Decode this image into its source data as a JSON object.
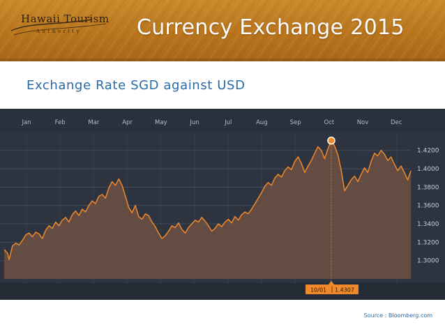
{
  "banner": {
    "logo_text": "Hawaii Tourism",
    "logo_subtext": "Authority",
    "title": "Currency Exchange 2015"
  },
  "subtitle": "Exchange Rate SGD against USD",
  "source": "Source : Bloomberg.com",
  "colors": {
    "banner": "#b9751d",
    "chart_bg": "#2d3440",
    "line": "#f0892b",
    "area": "#6b4f43",
    "subtitle": "#2a6aa8"
  },
  "chart_data": {
    "type": "area",
    "title": "",
    "xlabel": "",
    "ylabel": "",
    "months": [
      "Jan",
      "Feb",
      "Mar",
      "Apr",
      "May",
      "Jun",
      "Jul",
      "Aug",
      "Sep",
      "Oct",
      "Nov",
      "Dec"
    ],
    "yticks": [
      "1.4200",
      "1.4000",
      "1.3800",
      "1.3600",
      "1.3400",
      "1.3200",
      "1.3000"
    ],
    "ylim": [
      1.28,
      1.435
    ],
    "grid": true,
    "highlight": {
      "date": "10/01",
      "value": "1.4307"
    },
    "series": [
      {
        "values": [
          [
            0,
            1.312
          ],
          [
            2,
            1.308
          ],
          [
            3,
            1.301
          ],
          [
            5,
            1.316
          ],
          [
            7,
            1.319
          ],
          [
            9,
            1.317
          ],
          [
            11,
            1.322
          ],
          [
            13,
            1.328
          ],
          [
            15,
            1.33
          ],
          [
            17,
            1.326
          ],
          [
            19,
            1.331
          ],
          [
            21,
            1.329
          ],
          [
            23,
            1.324
          ],
          [
            25,
            1.333
          ],
          [
            27,
            1.338
          ],
          [
            29,
            1.335
          ],
          [
            31,
            1.342
          ],
          [
            33,
            1.338
          ],
          [
            35,
            1.344
          ],
          [
            37,
            1.347
          ],
          [
            39,
            1.342
          ],
          [
            41,
            1.35
          ],
          [
            43,
            1.354
          ],
          [
            45,
            1.349
          ],
          [
            47,
            1.356
          ],
          [
            49,
            1.353
          ],
          [
            51,
            1.36
          ],
          [
            53,
            1.365
          ],
          [
            55,
            1.362
          ],
          [
            57,
            1.37
          ],
          [
            59,
            1.372
          ],
          [
            61,
            1.368
          ],
          [
            63,
            1.379
          ],
          [
            65,
            1.386
          ],
          [
            67,
            1.382
          ],
          [
            69,
            1.389
          ],
          [
            71,
            1.382
          ],
          [
            73,
            1.37
          ],
          [
            75,
            1.358
          ],
          [
            77,
            1.352
          ],
          [
            79,
            1.36
          ],
          [
            81,
            1.348
          ],
          [
            83,
            1.345
          ],
          [
            85,
            1.351
          ],
          [
            87,
            1.349
          ],
          [
            89,
            1.342
          ],
          [
            91,
            1.337
          ],
          [
            93,
            1.33
          ],
          [
            95,
            1.324
          ],
          [
            97,
            1.327
          ],
          [
            99,
            1.332
          ],
          [
            101,
            1.338
          ],
          [
            103,
            1.336
          ],
          [
            105,
            1.341
          ],
          [
            107,
            1.334
          ],
          [
            109,
            1.33
          ],
          [
            111,
            1.336
          ],
          [
            113,
            1.34
          ],
          [
            115,
            1.344
          ],
          [
            117,
            1.342
          ],
          [
            119,
            1.347
          ],
          [
            121,
            1.343
          ],
          [
            123,
            1.338
          ],
          [
            125,
            1.332
          ],
          [
            127,
            1.335
          ],
          [
            129,
            1.34
          ],
          [
            131,
            1.337
          ],
          [
            133,
            1.342
          ],
          [
            135,
            1.345
          ],
          [
            137,
            1.341
          ],
          [
            139,
            1.348
          ],
          [
            141,
            1.344
          ],
          [
            143,
            1.35
          ],
          [
            145,
            1.353
          ],
          [
            147,
            1.351
          ],
          [
            149,
            1.356
          ],
          [
            151,
            1.362
          ],
          [
            153,
            1.368
          ],
          [
            155,
            1.374
          ],
          [
            157,
            1.381
          ],
          [
            159,
            1.385
          ],
          [
            161,
            1.382
          ],
          [
            163,
            1.39
          ],
          [
            165,
            1.394
          ],
          [
            167,
            1.391
          ],
          [
            169,
            1.398
          ],
          [
            171,
            1.402
          ],
          [
            173,
            1.399
          ],
          [
            175,
            1.408
          ],
          [
            177,
            1.413
          ],
          [
            179,
            1.406
          ],
          [
            181,
            1.396
          ],
          [
            183,
            1.403
          ],
          [
            185,
            1.409
          ],
          [
            187,
            1.417
          ],
          [
            189,
            1.424
          ],
          [
            191,
            1.42
          ],
          [
            193,
            1.411
          ],
          [
            195,
            1.422
          ],
          [
            197,
            1.4307
          ],
          [
            199,
            1.425
          ],
          [
            201,
            1.415
          ],
          [
            203,
            1.398
          ],
          [
            205,
            1.376
          ],
          [
            207,
            1.382
          ],
          [
            209,
            1.388
          ],
          [
            211,
            1.392
          ],
          [
            213,
            1.386
          ],
          [
            215,
            1.394
          ],
          [
            217,
            1.401
          ],
          [
            219,
            1.396
          ],
          [
            221,
            1.408
          ],
          [
            223,
            1.417
          ],
          [
            225,
            1.414
          ],
          [
            227,
            1.42
          ],
          [
            229,
            1.416
          ],
          [
            231,
            1.409
          ],
          [
            233,
            1.413
          ],
          [
            235,
            1.405
          ],
          [
            237,
            1.398
          ],
          [
            239,
            1.403
          ],
          [
            241,
            1.396
          ],
          [
            243,
            1.388
          ],
          [
            245,
            1.398
          ]
        ]
      }
    ]
  }
}
